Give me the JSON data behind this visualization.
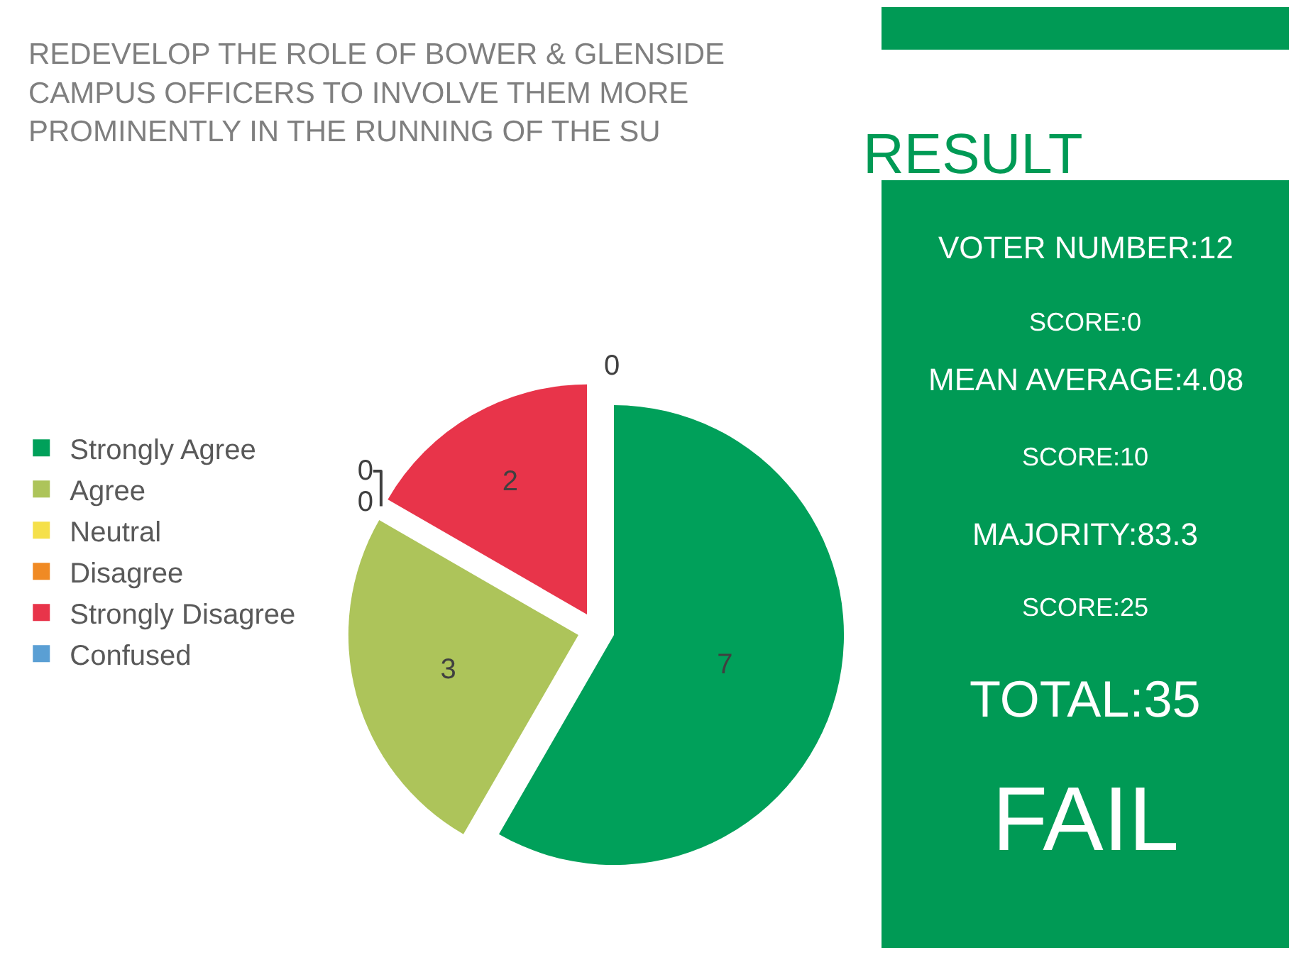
{
  "chart_data": [
    {
      "type": "pie",
      "title": "REDEVELOP THE ROLE OF BOWER & GLENSIDE CAMPUS OFFICERS TO INVOLVE THEM MORE PROMINENTLY IN THE RUNNING OF THE SU",
      "categories": [
        "Strongly Agree",
        "Agree",
        "Neutral",
        "Disagree",
        "Strongly Disagree",
        "Confused"
      ],
      "values": [
        7,
        3,
        0,
        0,
        2,
        0
      ],
      "colors": [
        "#00a05a",
        "#adc45a",
        "#f5e04a",
        "#f08a24",
        "#e8344a",
        "#5a9fd4"
      ],
      "value_labels": [
        "7",
        "3",
        "0",
        "0",
        "2",
        "0"
      ],
      "legend": "left"
    },
    {
      "type": "other",
      "title": "RESULT",
      "color": "#009a55",
      "annotations": [
        "VOTER NUMBER:12",
        "SCORE:0",
        "MEAN AVERAGE:4.08",
        "SCORE:10",
        "MAJORITY:83.3",
        "SCORE:25",
        "TOTAL:35",
        "FAIL"
      ]
    }
  ]
}
